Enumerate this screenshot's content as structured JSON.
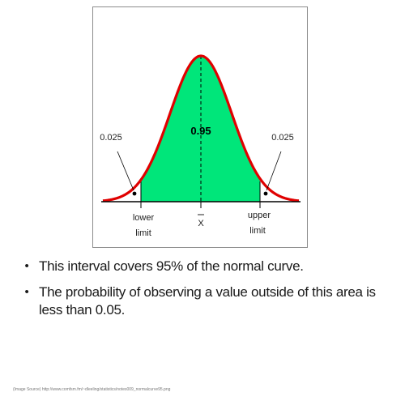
{
  "figure": {
    "center_value_label": "0.95",
    "left_tail_label": "0.025",
    "right_tail_label": "0.025",
    "lower_limit_label": [
      "lower",
      "limit"
    ],
    "upper_limit_label": [
      "upper",
      "limit"
    ],
    "mean_label": "X",
    "colors": {
      "curve": "#e00000",
      "fill": "#00e67a",
      "axis": "#000000",
      "frame": "#8c8c8c"
    }
  },
  "bullets": [
    "This interval covers 95% of the normal curve.",
    "The probability of observing a value outside of this area is less than 0.05."
  ],
  "source_note": "(Image Source) http://www.comfsm.fm/~dleeling/statistics/notes009_normalcurve95.png"
}
